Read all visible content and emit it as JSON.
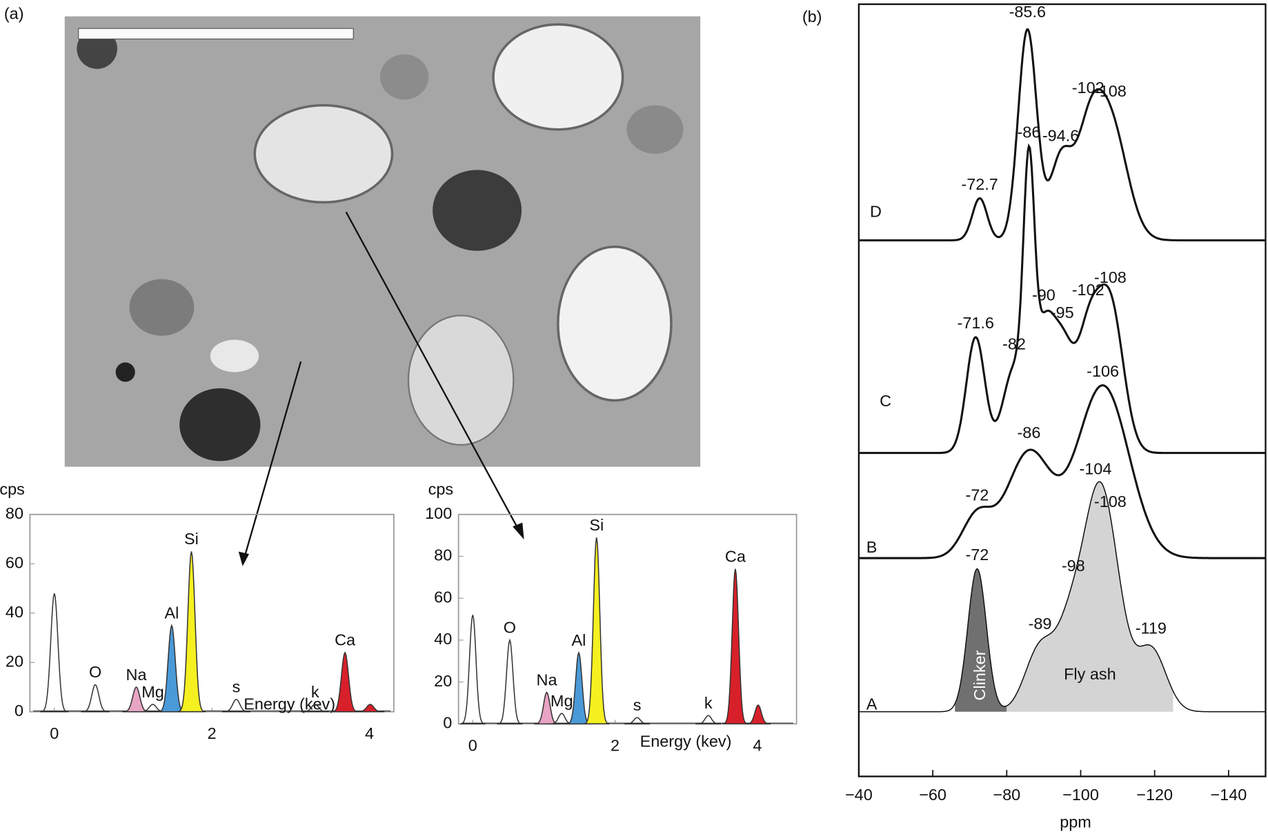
{
  "panels": {
    "a": "(a)",
    "b": "(b)"
  },
  "chart_data": [
    {
      "type": "eds",
      "y_label": "cps",
      "x_label": "Energy (kev)",
      "xlim": [
        -0.31,
        4.31
      ],
      "ylim": [
        0,
        80
      ],
      "xticks": [
        0,
        2,
        4
      ],
      "yticks": [
        0,
        20,
        40,
        60,
        80
      ],
      "peaks": [
        {
          "x": 0,
          "y": 48
        },
        {
          "label": "O",
          "x": 0.52,
          "y": 11
        },
        {
          "label": "Na",
          "x": 1.04,
          "y": 10,
          "color": "#e8a4c4"
        },
        {
          "label": "Mg",
          "x": 1.25,
          "y": 3
        },
        {
          "label": "Al",
          "x": 1.49,
          "y": 35,
          "color": "#4a9ad8"
        },
        {
          "label": "Si",
          "x": 1.74,
          "y": 65,
          "color": "#f5f020"
        },
        {
          "label": "s",
          "x": 2.31,
          "y": 5
        },
        {
          "label": "k",
          "x": 3.31,
          "y": 3
        },
        {
          "label": "Ca",
          "x": 3.69,
          "y": 24,
          "color": "#d8202a"
        },
        {
          "x": 4.01,
          "y": 3,
          "color": "#d8202a"
        }
      ]
    },
    {
      "type": "eds",
      "y_label": "cps",
      "x_label": "Energy (kev)",
      "xlim": [
        -0.2,
        4.55
      ],
      "ylim": [
        0,
        100
      ],
      "xticks": [
        0,
        2,
        4
      ],
      "yticks": [
        0,
        20,
        40,
        60,
        80,
        100
      ],
      "peaks": [
        {
          "x": 0,
          "y": 52
        },
        {
          "label": "O",
          "x": 0.52,
          "y": 40
        },
        {
          "label": "Na",
          "x": 1.04,
          "y": 15,
          "color": "#e8a4c4"
        },
        {
          "label": "Mg",
          "x": 1.25,
          "y": 5
        },
        {
          "label": "Al",
          "x": 1.49,
          "y": 34,
          "color": "#4a9ad8"
        },
        {
          "label": "Si",
          "x": 1.74,
          "y": 89,
          "color": "#f5f020"
        },
        {
          "label": "s",
          "x": 2.31,
          "y": 3
        },
        {
          "label": "k",
          "x": 3.31,
          "y": 4
        },
        {
          "label": "Ca",
          "x": 3.69,
          "y": 74,
          "color": "#d8202a"
        },
        {
          "x": 4.01,
          "y": 9,
          "color": "#d8202a"
        }
      ]
    },
    {
      "type": "nmr",
      "x_label": "ppm",
      "xlim": [
        -40,
        -150
      ],
      "xticks": [
        {
          "value": -40,
          "label": "−40"
        },
        {
          "value": -60,
          "label": "−60"
        },
        {
          "value": -80,
          "label": "−80"
        },
        {
          "value": -100,
          "label": "−100"
        },
        {
          "value": -120,
          "label": "−120"
        },
        {
          "value": -140,
          "label": "−140"
        }
      ],
      "series": [
        {
          "name": "D",
          "peaks": [
            {
              "x": -72.7,
              "y": 20,
              "width": 2
            },
            {
              "x": -85.6,
              "y": 100,
              "width": 2.5
            },
            {
              "x": -94.6,
              "y": 38,
              "width": 3
            },
            {
              "x": -102,
              "y": 40,
              "width": 3.5
            },
            {
              "x": -108,
              "y": 55,
              "width": 4.5
            }
          ]
        },
        {
          "name": "C",
          "peaks": [
            {
              "x": -71.6,
              "y": 55,
              "width": 2.5
            },
            {
              "x": -82,
              "y": 40,
              "width": 3
            },
            {
              "x": -86,
              "y": 115,
              "width": 1.5
            },
            {
              "x": -90,
              "y": 50,
              "width": 2.5
            },
            {
              "x": -95,
              "y": 50,
              "width": 3
            },
            {
              "x": -102,
              "y": 50,
              "width": 3
            },
            {
              "x": -108,
              "y": 70,
              "width": 3.5
            }
          ]
        },
        {
          "name": "B",
          "peaks": [
            {
              "x": -72,
              "y": 20,
              "width": 4
            },
            {
              "x": -86,
              "y": 50,
              "width": 6
            },
            {
              "x": -106,
              "y": 82,
              "width": 7
            }
          ]
        },
        {
          "name": "A",
          "peaks": [
            {
              "x": -72,
              "y": 68,
              "width": 2.5
            },
            {
              "x": -89,
              "y": 30,
              "width": 4
            },
            {
              "x": -98,
              "y": 45,
              "width": 4
            },
            {
              "x": -104,
              "y": 55,
              "width": 3.5
            },
            {
              "x": -108,
              "y": 62,
              "width": 4
            },
            {
              "x": -119,
              "y": 30,
              "width": 4
            }
          ],
          "regions": [
            {
              "label": "Clinker",
              "from": -66,
              "to": -80,
              "color": "#707070"
            },
            {
              "label": "Fly ash",
              "from": -80,
              "to": -125,
              "color": "#d4d4d4"
            }
          ]
        }
      ]
    }
  ]
}
